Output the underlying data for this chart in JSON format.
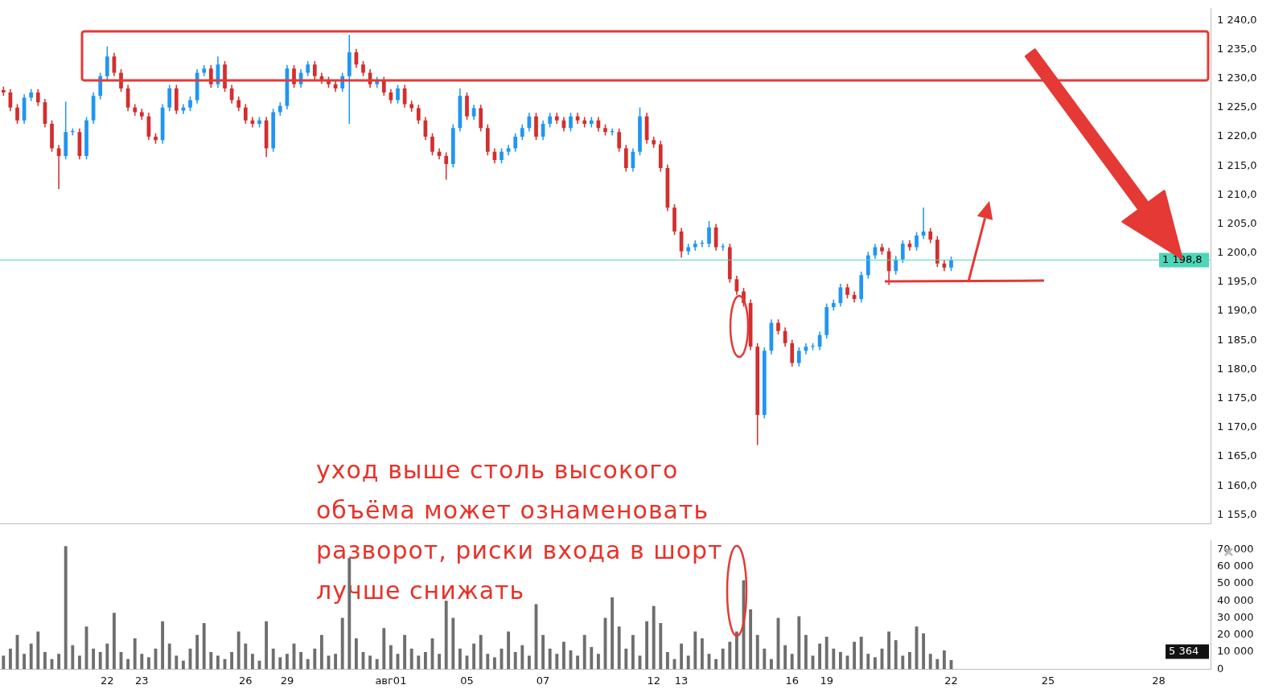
{
  "chart_data": [
    {
      "type": "candlestick",
      "categories": [
        null,
        null,
        null,
        null,
        null,
        null,
        null,
        null,
        null,
        null,
        null,
        null,
        null,
        null,
        null,
        null,
        null,
        null,
        null,
        null,
        null,
        null,
        null,
        null,
        null,
        null,
        null,
        null,
        null,
        null,
        null,
        null,
        null,
        null,
        null,
        null,
        null,
        null,
        null,
        null,
        null,
        null,
        null,
        null,
        null,
        null,
        null,
        null,
        null,
        null,
        null,
        null,
        null,
        null,
        null,
        null,
        null,
        null,
        null,
        null,
        null,
        null,
        null,
        null,
        null,
        null,
        null,
        null,
        null,
        null,
        null,
        null,
        null,
        null,
        null,
        null,
        null,
        null,
        null,
        null,
        null,
        null,
        null,
        null,
        null,
        null,
        null,
        null,
        null,
        null,
        null,
        null,
        null,
        null,
        null,
        null,
        null,
        null,
        null,
        null,
        null,
        null,
        null,
        null,
        null,
        null,
        null,
        null,
        null,
        null,
        null,
        null,
        null,
        null,
        null,
        null,
        null,
        null,
        null,
        null,
        null,
        null,
        null,
        null,
        null,
        null,
        null,
        null,
        null,
        null,
        null,
        null,
        null,
        null,
        null,
        null,
        null,
        null,
        null,
        null,
        null,
        null,
        null,
        null,
        null,
        null,
        null,
        null,
        null,
        null,
        null,
        null,
        null,
        null,
        null,
        null,
        null,
        null,
        null,
        null,
        null,
        null,
        null,
        null,
        null,
        null,
        null,
        null,
        null,
        null,
        null,
        null,
        null,
        null,
        null
      ],
      "ohlc": [
        [
          1228.0,
          1228.6,
          1227.0,
          1227.6
        ],
        [
          1227.6,
          1228.2,
          1224.4,
          1225
        ],
        [
          1225,
          1225.6,
          1222.2,
          1222.8
        ],
        [
          1222.8,
          1227.3,
          1222.2,
          1226.7
        ],
        [
          1226.7,
          1228.2,
          1226.1,
          1227.6
        ],
        [
          1227.6,
          1228.2,
          1225.3,
          1225.9
        ],
        [
          1225.9,
          1226.5,
          1221.6,
          1222.2
        ],
        [
          1222.2,
          1222.8,
          1217.4,
          1218
        ],
        [
          1218,
          1218.6,
          1211,
          1216.7
        ],
        [
          1216.7,
          1226,
          1216.1,
          1220.8
        ],
        [
          1220.8,
          1221.4,
          1220.2,
          1220.8
        ],
        [
          1220.8,
          1221.4,
          1216.1,
          1216.7
        ],
        [
          1216.7,
          1223.4,
          1216.1,
          1222.8
        ],
        [
          1222.8,
          1227.6,
          1222.2,
          1227
        ],
        [
          1227,
          1231,
          1226.4,
          1230.4
        ],
        [
          1230.4,
          1235.5,
          1229.8,
          1233.8
        ],
        [
          1233.8,
          1234.4,
          1230.4,
          1231
        ],
        [
          1231,
          1231.6,
          1227.7,
          1228.3
        ],
        [
          1228.3,
          1228.9,
          1224.4,
          1225
        ],
        [
          1225,
          1225.6,
          1223.6,
          1224.2
        ],
        [
          1224.2,
          1224.8,
          1222.9,
          1223.5
        ],
        [
          1223.5,
          1224.1,
          1219.4,
          1220
        ],
        [
          1220,
          1220.6,
          1218.8,
          1219.4
        ],
        [
          1219.4,
          1225.6,
          1218.8,
          1225
        ],
        [
          1225,
          1228.9,
          1224.4,
          1228.3
        ],
        [
          1228.3,
          1228.9,
          1223.9,
          1224.5
        ],
        [
          1224.5,
          1225.6,
          1223.9,
          1225
        ],
        [
          1225,
          1226.9,
          1224.4,
          1226.3
        ],
        [
          1226.3,
          1231.6,
          1225.7,
          1231
        ],
        [
          1231,
          1232.3,
          1230.4,
          1231.7
        ],
        [
          1231.7,
          1232.3,
          1228.4,
          1229
        ],
        [
          1229,
          1233.8,
          1228.4,
          1232.4
        ],
        [
          1232.4,
          1233,
          1227.7,
          1228.3
        ],
        [
          1228.3,
          1228.9,
          1225.7,
          1226.3
        ],
        [
          1226.3,
          1226.9,
          1224.4,
          1225
        ],
        [
          1225,
          1225.6,
          1222.2,
          1222.8
        ],
        [
          1222.8,
          1223.4,
          1221.6,
          1222.2
        ],
        [
          1222.2,
          1223.4,
          1221.6,
          1222.8
        ],
        [
          1222.8,
          1223.4,
          1216.5,
          1218
        ],
        [
          1218,
          1224.8,
          1217.4,
          1224.2
        ],
        [
          1224.2,
          1225.9,
          1223.6,
          1225.3
        ],
        [
          1225.3,
          1232.3,
          1224.7,
          1231.7
        ],
        [
          1231.7,
          1232.3,
          1228.4,
          1229
        ],
        [
          1229,
          1231.6,
          1228.4,
          1231
        ],
        [
          1231,
          1233,
          1230.4,
          1232.4
        ],
        [
          1232.4,
          1233,
          1229.8,
          1230.4
        ],
        [
          1230.4,
          1231,
          1229.1,
          1229.7
        ],
        [
          1229.7,
          1230.3,
          1228.4,
          1229
        ],
        [
          1229,
          1229.6,
          1227.7,
          1228.3
        ],
        [
          1228.3,
          1231,
          1227.7,
          1230.4
        ],
        [
          1230.4,
          1237.5,
          1222.2,
          1234.5
        ],
        [
          1234.5,
          1235.1,
          1231.8,
          1232.4
        ],
        [
          1232.4,
          1233,
          1230.4,
          1231
        ],
        [
          1231,
          1231.6,
          1228.4,
          1229
        ],
        [
          1229,
          1230.3,
          1228.4,
          1229.7
        ],
        [
          1229.7,
          1230.3,
          1227,
          1227.6
        ],
        [
          1227.6,
          1228.2,
          1225.7,
          1226.3
        ],
        [
          1226.3,
          1228.9,
          1225.7,
          1228.3
        ],
        [
          1228.3,
          1228.9,
          1225,
          1225.6
        ],
        [
          1225.6,
          1226.2,
          1224.3,
          1224.9
        ],
        [
          1224.9,
          1225.5,
          1222.2,
          1222.8
        ],
        [
          1222.8,
          1223.4,
          1219.4,
          1220
        ],
        [
          1220,
          1220.6,
          1216.8,
          1217.4
        ],
        [
          1217.4,
          1218,
          1216.1,
          1216.7
        ],
        [
          1216.7,
          1217.3,
          1212.6,
          1215.3
        ],
        [
          1215.3,
          1222.1,
          1214.7,
          1221.5
        ],
        [
          1221.5,
          1228.3,
          1220.9,
          1227
        ],
        [
          1227,
          1227.6,
          1222.9,
          1223.5
        ],
        [
          1223.5,
          1225.5,
          1222.9,
          1224.9
        ],
        [
          1224.9,
          1225.5,
          1220.9,
          1221.5
        ],
        [
          1221.5,
          1222.1,
          1216.8,
          1217.4
        ],
        [
          1217.4,
          1218,
          1215.4,
          1216
        ],
        [
          1216,
          1218,
          1215.4,
          1217.4
        ],
        [
          1217.4,
          1218.6,
          1216.8,
          1218
        ],
        [
          1218,
          1220.6,
          1217.4,
          1220
        ],
        [
          1220,
          1222.1,
          1219.4,
          1221.5
        ],
        [
          1221.5,
          1224.1,
          1220.9,
          1223.5
        ],
        [
          1223.5,
          1224.1,
          1219.4,
          1220
        ],
        [
          1220,
          1222.8,
          1219.4,
          1222.2
        ],
        [
          1222.2,
          1224.1,
          1221.6,
          1223.5
        ],
        [
          1223.5,
          1224.1,
          1222.2,
          1222.8
        ],
        [
          1222.8,
          1223.4,
          1220.9,
          1221.5
        ],
        [
          1221.5,
          1224.1,
          1220.9,
          1223.5
        ],
        [
          1223.5,
          1224.1,
          1222.2,
          1222.8
        ],
        [
          1222.8,
          1223.4,
          1221.6,
          1222.2
        ],
        [
          1222.2,
          1223.4,
          1221.6,
          1222.8
        ],
        [
          1222.8,
          1223.4,
          1220.9,
          1221.5
        ],
        [
          1221.5,
          1222.1,
          1220.2,
          1220.8
        ],
        [
          1220.8,
          1221.4,
          1220.2,
          1220.8
        ],
        [
          1220.8,
          1221.4,
          1217.4,
          1218
        ],
        [
          1218,
          1218.6,
          1214,
          1214.6
        ],
        [
          1214.6,
          1218,
          1214,
          1217.4
        ],
        [
          1217.4,
          1225,
          1216.8,
          1223.5
        ],
        [
          1223.5,
          1224.1,
          1218.8,
          1219.4
        ],
        [
          1219.4,
          1220,
          1218.1,
          1218.7
        ],
        [
          1218.7,
          1219.3,
          1214,
          1214.6
        ],
        [
          1214.6,
          1215.2,
          1207.2,
          1207.8
        ],
        [
          1207.8,
          1208.4,
          1203.1,
          1203.7
        ],
        [
          1203.7,
          1204.3,
          1199.2,
          1200.3
        ],
        [
          1200.3,
          1201.6,
          1199.7,
          1201
        ],
        [
          1201,
          1202.2,
          1200.4,
          1201.6
        ],
        [
          1201.6,
          1202.2,
          1201,
          1201.6
        ],
        [
          1201.6,
          1205.5,
          1201,
          1204.4
        ],
        [
          1204.4,
          1205,
          1200.4,
          1201
        ],
        [
          1201,
          1201.6,
          1200.4,
          1201
        ],
        [
          1201,
          1201.6,
          1194.9,
          1195.5
        ],
        [
          1195.5,
          1196.1,
          1192.8,
          1193.4
        ],
        [
          1193.4,
          1194,
          1190.8,
          1191.4
        ],
        [
          1191.4,
          1192,
          1183.3,
          1183.9
        ],
        [
          1183.9,
          1184.5,
          1167,
          1172.2
        ],
        [
          1172.2,
          1183.8,
          1171.6,
          1183.2
        ],
        [
          1183.2,
          1188.6,
          1182.6,
          1188
        ],
        [
          1188,
          1188.6,
          1186,
          1186.6
        ],
        [
          1186.6,
          1187.2,
          1183.9,
          1184.5
        ],
        [
          1184.5,
          1185.1,
          1180.5,
          1181.1
        ],
        [
          1181.1,
          1183.8,
          1180.5,
          1183.2
        ],
        [
          1183.2,
          1184.5,
          1182.6,
          1183.9
        ],
        [
          1183.9,
          1184.5,
          1183.3,
          1183.9
        ],
        [
          1183.9,
          1186.5,
          1183.3,
          1185.9
        ],
        [
          1185.9,
          1191.3,
          1185.3,
          1190.7
        ],
        [
          1190.7,
          1192,
          1190.1,
          1191.4
        ],
        [
          1191.4,
          1194.7,
          1190.8,
          1194.1
        ],
        [
          1194.1,
          1194.7,
          1192.2,
          1192.8
        ],
        [
          1192.8,
          1193.4,
          1191.5,
          1192.1
        ],
        [
          1192.1,
          1196.8,
          1191.5,
          1196.2
        ],
        [
          1196.2,
          1200.2,
          1195.6,
          1199.6
        ],
        [
          1199.6,
          1201.6,
          1199,
          1201
        ],
        [
          1201,
          1201.6,
          1199.7,
          1200.3
        ],
        [
          1200.3,
          1200.9,
          1194.5,
          1196.9
        ],
        [
          1196.9,
          1199.5,
          1196.3,
          1198.9
        ],
        [
          1198.9,
          1202.2,
          1198.3,
          1201.6
        ],
        [
          1201.6,
          1202.2,
          1200.4,
          1201
        ],
        [
          1201,
          1203.6,
          1200.4,
          1203
        ],
        [
          1203,
          1207.8,
          1202.4,
          1203.7
        ],
        [
          1203.7,
          1204.3,
          1201.7,
          1202.3
        ],
        [
          1202.3,
          1202.9,
          1197.6,
          1198.2
        ],
        [
          1198.2,
          1198.8,
          1196.9,
          1197.5
        ],
        [
          1197.5,
          1199.4,
          1196.9,
          1198.8
        ],
        null,
        null,
        null,
        null,
        null,
        null,
        null,
        null,
        null,
        null,
        null,
        null,
        null,
        null,
        null,
        null,
        null,
        null,
        null,
        null,
        null,
        null,
        null,
        null,
        null,
        null,
        null,
        null,
        null,
        null,
        null,
        null,
        null,
        null,
        null,
        null,
        null
      ],
      "colors": [
        "#d32f2f",
        "#d32f2f",
        "#d32f2f",
        "#2196f3",
        "#2196f3",
        "#d32f2f",
        "#d32f2f",
        "#d32f2f",
        "#d32f2f",
        "#2196f3",
        "#2196f3",
        "#d32f2f",
        "#2196f3",
        "#2196f3",
        "#2196f3",
        "#2196f3",
        "#d32f2f",
        "#d32f2f",
        "#d32f2f",
        "#d32f2f",
        "#d32f2f",
        "#d32f2f",
        "#d32f2f",
        "#2196f3",
        "#2196f3",
        "#d32f2f",
        "#2196f3",
        "#2196f3",
        "#2196f3",
        "#2196f3",
        "#d32f2f",
        "#2196f3",
        "#d32f2f",
        "#d32f2f",
        "#d32f2f",
        "#d32f2f",
        "#d32f2f",
        "#2196f3",
        "#d32f2f",
        "#2196f3",
        "#2196f3",
        "#2196f3",
        "#d32f2f",
        "#2196f3",
        "#2196f3",
        "#d32f2f",
        "#d32f2f",
        "#d32f2f",
        "#d32f2f",
        "#2196f3",
        "#2196f3",
        "#d32f2f",
        "#d32f2f",
        "#d32f2f",
        "#2196f3",
        "#d32f2f",
        "#d32f2f",
        "#2196f3",
        "#d32f2f",
        "#d32f2f",
        "#d32f2f",
        "#d32f2f",
        "#d32f2f",
        "#d32f2f",
        "#d32f2f",
        "#2196f3",
        "#2196f3",
        "#d32f2f",
        "#2196f3",
        "#d32f2f",
        "#d32f2f",
        "#d32f2f",
        "#2196f3",
        "#2196f3",
        "#2196f3",
        "#2196f3",
        "#2196f3",
        "#d32f2f",
        "#2196f3",
        "#2196f3",
        "#d32f2f",
        "#d32f2f",
        "#2196f3",
        "#d32f2f",
        "#d32f2f",
        "#2196f3",
        "#d32f2f",
        "#d32f2f",
        "#2196f3",
        "#d32f2f",
        "#d32f2f",
        "#2196f3",
        "#2196f3",
        "#d32f2f",
        "#d32f2f",
        "#d32f2f",
        "#d32f2f",
        "#d32f2f",
        "#d32f2f",
        "#2196f3",
        "#2196f3",
        "#2196f3",
        "#2196f3",
        "#d32f2f",
        "#2196f3",
        "#d32f2f",
        "#d32f2f",
        "#d32f2f",
        "#d32f2f",
        "#d32f2f",
        "#2196f3",
        "#2196f3",
        "#d32f2f",
        "#d32f2f",
        "#d32f2f",
        "#2196f3",
        "#2196f3",
        "#2196f3",
        "#2196f3",
        "#2196f3",
        "#2196f3",
        "#2196f3",
        "#d32f2f",
        "#d32f2f",
        "#2196f3",
        "#2196f3",
        "#2196f3",
        "#d32f2f",
        "#d32f2f",
        "#2196f3",
        "#2196f3",
        "#d32f2f",
        "#2196f3",
        "#2196f3",
        "#d32f2f",
        "#d32f2f",
        "#d32f2f",
        "#2196f3",
        null,
        null,
        null,
        null,
        null,
        null,
        null,
        null,
        null,
        null,
        null,
        null,
        null,
        null,
        null,
        null,
        null,
        null,
        null,
        null,
        null,
        null,
        null,
        null,
        null,
        null,
        null,
        null,
        null,
        null,
        null,
        null,
        null,
        null,
        null,
        null,
        null
      ],
      "ylim": [
        1153.5,
        1242
      ],
      "yticks": [
        {
          "value": 1155,
          "label": "1 155,0"
        },
        {
          "value": 1160,
          "label": "1 160,0"
        },
        {
          "value": 1165,
          "label": "1 165,0"
        },
        {
          "value": 1170,
          "label": "1 170,0"
        },
        {
          "value": 1175,
          "label": "1 175,0"
        },
        {
          "value": 1180,
          "label": "1 180,0"
        },
        {
          "value": 1185,
          "label": "1 185,0"
        },
        {
          "value": 1190,
          "label": "1 190,0"
        },
        {
          "value": 1195,
          "label": "1 195,0"
        },
        {
          "value": 1200,
          "label": "1 200,0"
        },
        {
          "value": 1205,
          "label": "1 205,0"
        },
        {
          "value": 1210,
          "label": "1 210,0"
        },
        {
          "value": 1215,
          "label": "1 215,0"
        },
        {
          "value": 1220,
          "label": "1 220,0"
        },
        {
          "value": 1225,
          "label": "1 225,0"
        },
        {
          "value": 1230,
          "label": "1 230,0"
        },
        {
          "value": 1235,
          "label": "1 235,0"
        },
        {
          "value": 1240,
          "label": "1 240,0"
        }
      ],
      "ref_lines": [
        {
          "axis": "y",
          "value": 1198.8,
          "label": "1 198,8",
          "color": "#4dd6b8"
        }
      ],
      "annotations": [
        "уход выше столь высокого объёма может ознаменовать разворот, риски входа в шорт лучше снижать"
      ],
      "tick_labels": "y"
    },
    {
      "type": "bar",
      "categories": [
        null,
        null,
        null,
        null,
        null,
        null,
        null,
        null,
        null,
        null,
        null,
        null,
        null,
        null,
        null,
        "22",
        null,
        null,
        null,
        null,
        "23",
        null,
        null,
        null,
        null,
        null,
        null,
        null,
        null,
        null,
        null,
        null,
        null,
        null,
        null,
        "26",
        null,
        null,
        null,
        null,
        null,
        "29",
        null,
        null,
        null,
        null,
        null,
        null,
        null,
        null,
        null,
        null,
        null,
        null,
        null,
        null,
        "авг01",
        null,
        null,
        null,
        null,
        null,
        null,
        null,
        null,
        null,
        null,
        "05",
        null,
        null,
        null,
        null,
        null,
        null,
        null,
        null,
        null,
        null,
        "07",
        null,
        null,
        null,
        null,
        null,
        null,
        null,
        null,
        null,
        null,
        null,
        null,
        null,
        null,
        null,
        "12",
        null,
        null,
        null,
        "13",
        null,
        null,
        null,
        null,
        null,
        null,
        null,
        null,
        null,
        null,
        null,
        null,
        null,
        null,
        null,
        "16",
        null,
        null,
        null,
        null,
        "19",
        null,
        null,
        null,
        null,
        null,
        null,
        null,
        null,
        null,
        null,
        null,
        null,
        null,
        null,
        null,
        null,
        null,
        "22",
        null,
        null,
        null,
        null,
        null,
        null,
        null,
        null,
        null,
        null,
        null,
        null,
        null,
        "25",
        null,
        null,
        null,
        null,
        null,
        null,
        null,
        null,
        null,
        null,
        null,
        null,
        null,
        null,
        null,
        "28",
        null,
        null,
        null,
        null,
        null,
        null,
        null
      ],
      "series": [
        {
          "color": "#6e6e6e",
          "values": [
            8000,
            12000,
            20000,
            9000,
            15000,
            22000,
            10000,
            6000,
            9000,
            72000,
            14000,
            8000,
            25000,
            12000,
            10000,
            15000,
            33000,
            10000,
            6000,
            18000,
            9000,
            7000,
            12000,
            28000,
            15000,
            8000,
            5000,
            12000,
            20000,
            27000,
            10000,
            8000,
            6000,
            10000,
            22000,
            15000,
            9000,
            5000,
            28000,
            12000,
            7000,
            9000,
            15000,
            10000,
            6000,
            12000,
            20000,
            8000,
            9000,
            30000,
            65000,
            18000,
            10000,
            8000,
            6000,
            24000,
            14000,
            9000,
            20000,
            12000,
            8000,
            10000,
            18000,
            9000,
            40000,
            30000,
            12000,
            8000,
            15000,
            20000,
            9000,
            7000,
            12000,
            22000,
            10000,
            14000,
            8000,
            38000,
            20000,
            12000,
            9000,
            16000,
            11000,
            8000,
            20000,
            13000,
            9000,
            30000,
            42000,
            25000,
            12000,
            20000,
            8000,
            28000,
            37000,
            27000,
            10000,
            6000,
            15000,
            8000,
            22000,
            18000,
            9000,
            6000,
            12000,
            16000,
            22000,
            52000,
            35000,
            20000,
            12000,
            6000,
            30000,
            14000,
            9000,
            31000,
            20000,
            8000,
            15000,
            19000,
            12000,
            10000,
            8000,
            16000,
            19000,
            9000,
            7000,
            12000,
            22000,
            17000,
            8000,
            10000,
            25000,
            21000,
            9000,
            6000,
            11000,
            5364,
            null,
            null,
            null,
            null,
            null,
            null,
            null,
            null,
            null,
            null,
            null,
            null,
            null,
            null,
            null,
            null,
            null,
            null,
            null,
            null,
            null,
            null,
            null,
            null,
            null,
            null,
            null,
            null,
            null,
            null,
            null,
            null,
            null,
            null,
            null,
            null,
            null
          ]
        }
      ],
      "ylim": [
        0,
        75000
      ],
      "yticks": [
        0,
        {
          "value": 10000,
          "label": "10 000"
        },
        {
          "value": 20000,
          "label": "20 000"
        },
        {
          "value": 30000,
          "label": "30 000"
        },
        {
          "value": 40000,
          "label": "40 000"
        },
        {
          "value": 50000,
          "label": "50 000"
        },
        {
          "value": 60000,
          "label": "60 000"
        },
        {
          "value": 70000,
          "label": "70 000"
        }
      ],
      "annotations": [
        "5 364"
      ]
    }
  ]
}
